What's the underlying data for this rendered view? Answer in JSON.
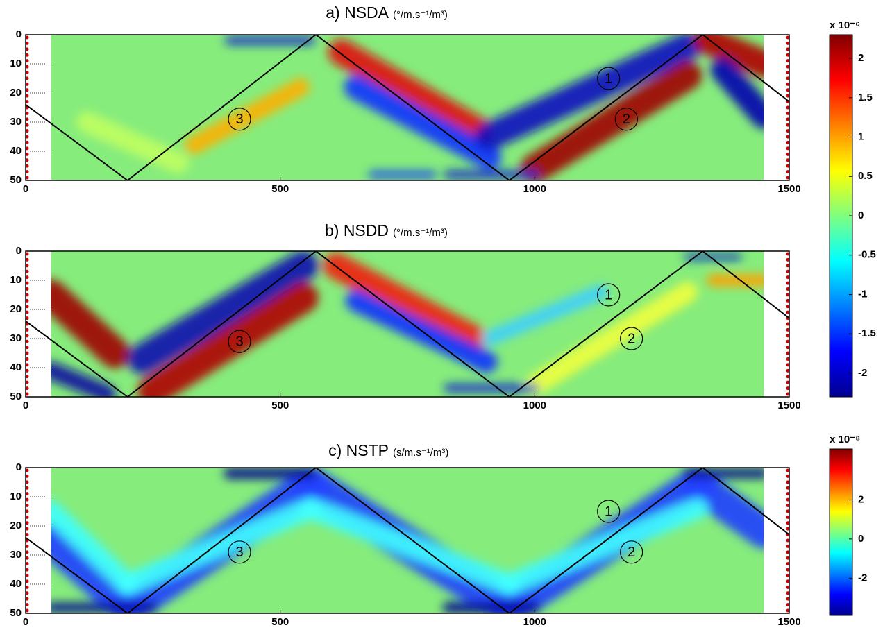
{
  "chart_data": [
    {
      "type": "heatmap",
      "title": "a) NSDA",
      "units": "(°/m.s⁻¹/m³)",
      "xlim": [
        0,
        1500
      ],
      "xticks": [
        0,
        500,
        1000,
        1500
      ],
      "ylim": [
        50,
        0
      ],
      "yticks": [
        0,
        10,
        20,
        30,
        40,
        50
      ],
      "ray": {
        "x": [
          0,
          200,
          570,
          950,
          1330,
          1500
        ],
        "y": [
          24,
          50,
          0,
          50,
          0,
          23
        ]
      },
      "annotations": [
        "1",
        "2",
        "3"
      ],
      "colorbar": {
        "label": "x 10⁻⁶",
        "lim": [
          -2.3,
          2.3
        ],
        "ticks": [
          2,
          1.5,
          1,
          0.5,
          0,
          -0.5,
          -1,
          -1.5,
          -2
        ]
      }
    },
    {
      "type": "heatmap",
      "title": "b) NSDD",
      "units": "(°/m.s⁻¹/m³)",
      "xlim": [
        0,
        1500
      ],
      "xticks": [
        0,
        500,
        1000,
        1500
      ],
      "ylim": [
        50,
        0
      ],
      "yticks": [
        0,
        10,
        20,
        30,
        40,
        50
      ],
      "ray": {
        "x": [
          0,
          200,
          570,
          950,
          1330,
          1500
        ],
        "y": [
          24,
          50,
          0,
          50,
          0,
          23
        ]
      },
      "annotations": [
        "1",
        "2",
        "3"
      ]
    },
    {
      "type": "heatmap",
      "title": "c) NSTP",
      "units": "(s/m.s⁻¹/m³)",
      "xlim": [
        0,
        1500
      ],
      "xticks": [
        0,
        500,
        1000,
        1500
      ],
      "ylim": [
        50,
        0
      ],
      "yticks": [
        0,
        10,
        20,
        30,
        40,
        50
      ],
      "ray": {
        "x": [
          0,
          200,
          570,
          950,
          1330,
          1500
        ],
        "y": [
          24,
          50,
          0,
          50,
          0,
          23
        ]
      },
      "annotations": [
        "1",
        "2",
        "3"
      ],
      "colorbar": {
        "label": "x 10⁻⁸",
        "lim": [
          -3.9,
          4.6
        ],
        "ticks": [
          2,
          0,
          -2
        ]
      }
    }
  ]
}
